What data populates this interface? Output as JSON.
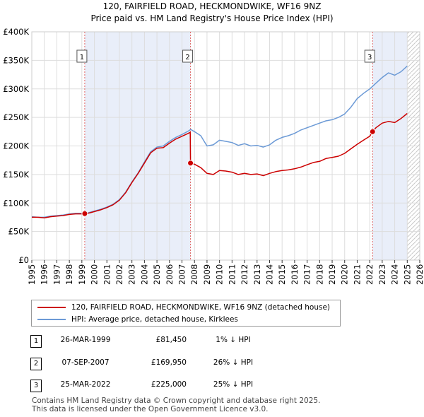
{
  "title": {
    "line1": "120, FAIRFIELD ROAD, HECKMONDWIKE, WF16 9NZ",
    "line2": "Price paid vs. HM Land Registry's House Price Index (HPI)"
  },
  "chart_data": {
    "type": "line",
    "title": "Price paid vs. HM Land Registry's House Price Index (HPI)",
    "xlabel": "",
    "ylabel": "",
    "xlim": [
      1995,
      2026
    ],
    "ylim": [
      0,
      400000
    ],
    "y_ticks": [
      0,
      50000,
      100000,
      150000,
      200000,
      250000,
      300000,
      350000,
      400000
    ],
    "y_tick_labels": [
      "£0",
      "£50K",
      "£100K",
      "£150K",
      "£200K",
      "£250K",
      "£300K",
      "£350K",
      "£400K"
    ],
    "x_ticks": [
      1995,
      1996,
      1997,
      1998,
      1999,
      2000,
      2001,
      2002,
      2003,
      2004,
      2005,
      2006,
      2007,
      2008,
      2009,
      2010,
      2011,
      2012,
      2013,
      2014,
      2015,
      2016,
      2017,
      2018,
      2019,
      2020,
      2021,
      2022,
      2023,
      2024,
      2025,
      2026
    ],
    "x_tick_labels": [
      "1995",
      "1996",
      "1997",
      "1998",
      "1999",
      "2000",
      "2001",
      "2002",
      "2003",
      "2004",
      "2005",
      "2006",
      "2007",
      "2008",
      "2009",
      "2010",
      "2011",
      "2012",
      "2013",
      "2014",
      "2015",
      "2016",
      "2017",
      "2018",
      "2019",
      "2020",
      "2021",
      "2022",
      "2023",
      "2024",
      "2025",
      "2026"
    ],
    "grid": true,
    "series": [
      {
        "name": "120, FAIRFIELD ROAD, HECKMONDWIKE, WF16 9NZ (detached house)",
        "color": "#cc0000",
        "x": [
          1995.0,
          1995.5,
          1996.0,
          1996.5,
          1997.0,
          1997.5,
          1998.0,
          1998.5,
          1999.0,
          1999.23,
          1999.5,
          2000.0,
          2000.5,
          2001.0,
          2001.5,
          2002.0,
          2002.5,
          2003.0,
          2003.5,
          2004.0,
          2004.5,
          2005.0,
          2005.5,
          2006.0,
          2006.5,
          2007.0,
          2007.5,
          2007.66,
          2007.68,
          2008.0,
          2008.5,
          2009.0,
          2009.5,
          2010.0,
          2010.5,
          2011.0,
          2011.5,
          2012.0,
          2012.5,
          2013.0,
          2013.5,
          2014.0,
          2014.5,
          2015.0,
          2015.5,
          2016.0,
          2016.5,
          2017.0,
          2017.5,
          2018.0,
          2018.5,
          2019.0,
          2019.5,
          2020.0,
          2020.5,
          2021.0,
          2021.5,
          2022.0,
          2022.23,
          2022.5,
          2023.0,
          2023.5,
          2024.0,
          2024.5,
          2025.0
        ],
        "y": [
          75000,
          75000,
          74000,
          76000,
          77000,
          78000,
          80000,
          81000,
          81000,
          81450,
          82000,
          85000,
          88000,
          92000,
          97000,
          105000,
          118000,
          136000,
          152000,
          170000,
          188000,
          196000,
          197000,
          205000,
          212000,
          217000,
          222000,
          224000,
          169950,
          168000,
          162000,
          152000,
          150000,
          157000,
          156000,
          154000,
          150000,
          152000,
          150000,
          151000,
          148000,
          152000,
          155000,
          157000,
          158000,
          160000,
          163000,
          167000,
          171000,
          173000,
          178000,
          180000,
          182000,
          187000,
          195000,
          203000,
          210000,
          217000,
          225000,
          232000,
          240000,
          243000,
          241000,
          248000,
          257000
        ]
      },
      {
        "name": "HPI: Average price, detached house, Kirklees",
        "color": "#6c9ad6",
        "x": [
          1995.0,
          1995.5,
          1996.0,
          1996.5,
          1997.0,
          1997.5,
          1998.0,
          1998.5,
          1999.0,
          1999.5,
          2000.0,
          2000.5,
          2001.0,
          2001.5,
          2002.0,
          2002.5,
          2003.0,
          2003.5,
          2004.0,
          2004.5,
          2005.0,
          2005.5,
          2006.0,
          2006.5,
          2007.0,
          2007.5,
          2007.7,
          2008.0,
          2008.5,
          2009.0,
          2009.5,
          2010.0,
          2010.5,
          2011.0,
          2011.5,
          2012.0,
          2012.5,
          2013.0,
          2013.5,
          2014.0,
          2014.5,
          2015.0,
          2015.5,
          2016.0,
          2016.5,
          2017.0,
          2017.5,
          2018.0,
          2018.5,
          2019.0,
          2019.5,
          2020.0,
          2020.5,
          2021.0,
          2021.5,
          2022.0,
          2022.5,
          2023.0,
          2023.5,
          2024.0,
          2024.5,
          2025.0
        ],
        "y": [
          76000,
          75000,
          75000,
          77000,
          78000,
          79000,
          81000,
          82000,
          82000,
          83000,
          86000,
          89000,
          93000,
          98000,
          106000,
          119000,
          137000,
          153000,
          172000,
          190000,
          198000,
          200000,
          208000,
          215000,
          220000,
          226000,
          229000,
          225000,
          218000,
          200000,
          202000,
          210000,
          208000,
          206000,
          201000,
          204000,
          200000,
          201000,
          198000,
          202000,
          210000,
          215000,
          218000,
          222000,
          228000,
          232000,
          236000,
          240000,
          244000,
          246000,
          250000,
          256000,
          268000,
          283000,
          292000,
          300000,
          310000,
          320000,
          328000,
          324000,
          330000,
          340000
        ]
      }
    ],
    "sales": [
      {
        "label": "1",
        "x": 1999.23,
        "y": 81450
      },
      {
        "label": "2",
        "x": 2007.68,
        "y": 169950
      },
      {
        "label": "3",
        "x": 2022.23,
        "y": 225000
      }
    ],
    "projection_after": 2025.0
  },
  "legend": {
    "items": [
      {
        "label": "120, FAIRFIELD ROAD, HECKMONDWIKE, WF16 9NZ (detached house)",
        "color": "#cc0000"
      },
      {
        "label": "HPI: Average price, detached house, Kirklees",
        "color": "#6c9ad6"
      }
    ]
  },
  "transactions": [
    {
      "num": "1",
      "date": "26-MAR-1999",
      "price": "£81,450",
      "hpi": "1% ↓ HPI"
    },
    {
      "num": "2",
      "date": "07-SEP-2007",
      "price": "£169,950",
      "hpi": "26% ↓ HPI"
    },
    {
      "num": "3",
      "date": "25-MAR-2022",
      "price": "£225,000",
      "hpi": "25% ↓ HPI"
    }
  ],
  "footer": {
    "line1": "Contains HM Land Registry data © Crown copyright and database right 2025.",
    "line2": "This data is licensed under the Open Government Licence v3.0."
  }
}
